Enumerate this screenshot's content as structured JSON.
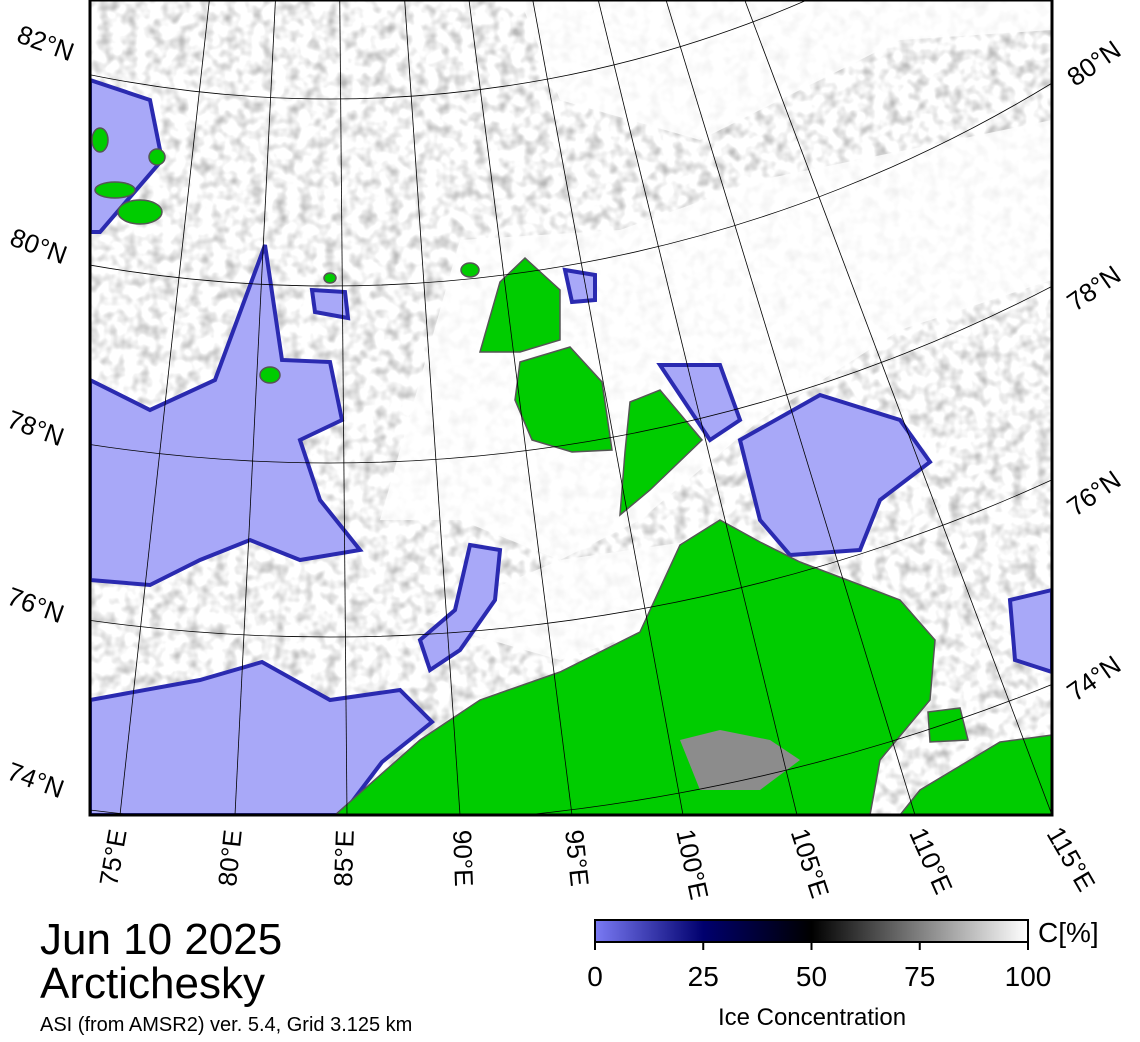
{
  "header": {
    "date": "Jun 10 2025",
    "region": "Arctichesky",
    "source": "ASI (from AMSR2) ver. 5.4,  Grid 3.125 km"
  },
  "map": {
    "lat_labels_left": [
      "82°N",
      "80°N",
      "78°N",
      "76°N",
      "74°N"
    ],
    "lat_labels_right": [
      "80°N",
      "78°N",
      "76°N",
      "74°N"
    ],
    "lon_labels": [
      "75°E",
      "80°E",
      "85°E",
      "90°E",
      "95°E",
      "100°E",
      "105°E",
      "110°E",
      "115°E"
    ]
  },
  "colorbar": {
    "unit": "C[%]",
    "label": "Ice Concentration",
    "lim": [
      0,
      100
    ],
    "ticks": [
      0,
      25,
      50,
      75,
      100
    ],
    "colors": [
      "#7a7af4",
      "#00006e",
      "#000000",
      "#808080",
      "#ffffff"
    ]
  }
}
